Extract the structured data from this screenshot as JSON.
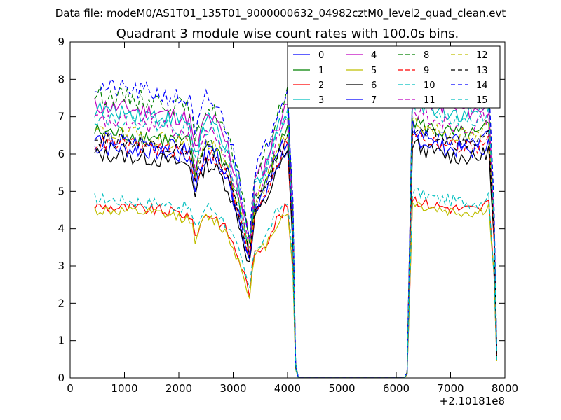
{
  "chart_data": {
    "type": "line",
    "subtitle": "Data file: modeM0/AS1T01_135T01_9000000632_04982cztM0_level2_quad_clean.evt",
    "title": "Quadrant 3 module wise count rates with 100.0s bins.",
    "xlabel": "",
    "ylabel": "",
    "x_offset_label": "+2.10181e8",
    "xlim": [
      0,
      8000
    ],
    "ylim": [
      0,
      9
    ],
    "x_ticks": [
      "0",
      "1000",
      "2000",
      "3000",
      "4000",
      "5000",
      "6000",
      "7000",
      "8000"
    ],
    "y_ticks": [
      "0",
      "1",
      "2",
      "3",
      "4",
      "5",
      "6",
      "7",
      "8",
      "9"
    ],
    "legend_position": "top-right",
    "grid": false,
    "series": [
      {
        "name": "0",
        "color": "#0000ff",
        "style": "solid",
        "scale": 1.0,
        "base": 6.2
      },
      {
        "name": "1",
        "color": "#008000",
        "style": "solid",
        "scale": 1.08,
        "base": 6.6
      },
      {
        "name": "2",
        "color": "#ff0000",
        "style": "solid",
        "scale": 0.7,
        "base": 4.6
      },
      {
        "name": "3",
        "color": "#00bfbf",
        "style": "solid",
        "scale": 1.1,
        "base": 7.2
      },
      {
        "name": "4",
        "color": "#bf00bf",
        "style": "solid",
        "scale": 1.11,
        "base": 7.3
      },
      {
        "name": "5",
        "color": "#bfbf00",
        "style": "solid",
        "scale": 0.68,
        "base": 4.5
      },
      {
        "name": "6",
        "color": "#000000",
        "style": "solid",
        "scale": 0.94,
        "base": 6.0
      },
      {
        "name": "7",
        "color": "#0000ff",
        "style": "solid",
        "scale": 0.98,
        "base": 6.4
      },
      {
        "name": "8",
        "color": "#008000",
        "style": "dashed",
        "scale": 1.15,
        "base": 7.6
      },
      {
        "name": "9",
        "color": "#ff0000",
        "style": "dashed",
        "scale": 0.95,
        "base": 6.3
      },
      {
        "name": "10",
        "color": "#00bfbf",
        "style": "dashed",
        "scale": 0.75,
        "base": 4.8
      },
      {
        "name": "11",
        "color": "#bf00bf",
        "style": "dashed",
        "scale": 1.02,
        "base": 6.9
      },
      {
        "name": "12",
        "color": "#bfbf00",
        "style": "dashed",
        "scale": 1.0,
        "base": 6.6
      },
      {
        "name": "13",
        "color": "#000000",
        "style": "dashed",
        "scale": 0.96,
        "base": 6.4
      },
      {
        "name": "14",
        "color": "#0000ff",
        "style": "dashed",
        "scale": 1.2,
        "base": 7.8
      },
      {
        "name": "15",
        "color": "#00bfbf",
        "style": "dashed",
        "scale": 1.04,
        "base": 7.0
      }
    ],
    "shape": {
      "x_start": 450,
      "bin": 100,
      "x_end": 7850,
      "gap_start": 4200,
      "gap_end": 6150,
      "profile": [
        [
          450,
          1.0
        ],
        [
          1000,
          0.99
        ],
        [
          1500,
          0.98
        ],
        [
          2000,
          0.96
        ],
        [
          2200,
          0.95
        ],
        [
          2300,
          0.83
        ],
        [
          2500,
          0.96
        ],
        [
          2700,
          0.93
        ],
        [
          2900,
          0.85
        ],
        [
          3100,
          0.7
        ],
        [
          3200,
          0.6
        ],
        [
          3300,
          0.5
        ],
        [
          3400,
          0.72
        ],
        [
          3600,
          0.79
        ],
        [
          3800,
          0.92
        ],
        [
          4000,
          1.0
        ],
        [
          4100,
          0.6
        ],
        [
          4150,
          0.05
        ],
        [
          4200,
          0.0
        ],
        [
          6150,
          0.0
        ],
        [
          6200,
          0.02
        ],
        [
          6300,
          1.05
        ],
        [
          6500,
          1.02
        ],
        [
          7000,
          0.99
        ],
        [
          7500,
          0.98
        ],
        [
          7700,
          1.02
        ],
        [
          7800,
          0.6
        ],
        [
          7850,
          0.1
        ]
      ]
    }
  }
}
